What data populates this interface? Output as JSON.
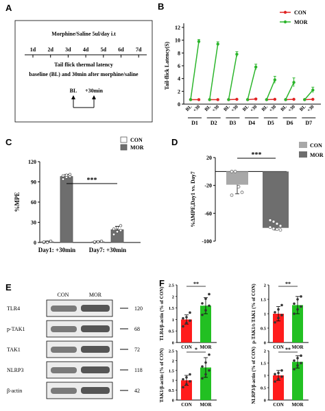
{
  "panel_labels": {
    "A": "A",
    "B": "B",
    "C": "C",
    "D": "D",
    "E": "E",
    "F": "F"
  },
  "colors": {
    "con_line": "#e02424",
    "mor_line": "#2bb52b",
    "con_bar": "#ffffff",
    "mor_bar": "#6e6e6e",
    "con_bar_d": "#a8a8a8",
    "mor_bar_d": "#6e6e6e",
    "f_con": "#ff1c1c",
    "f_mor": "#22c022"
  },
  "panel_a": {
    "title": "Morphine/Saline   5ul/day i.t",
    "days": [
      "1d",
      "2d",
      "3d",
      "4d",
      "5d",
      "6d",
      "7d"
    ],
    "line1": "Tail flick thermal latency",
    "line2": "baseline (BL) and 30min after morphine/saline",
    "bl": "BL",
    "t30": "+30min"
  },
  "chart_data": [
    {
      "panel": "B",
      "type": "line",
      "ylabel": "Tail-flick Latency(S)",
      "ylim": [
        0,
        12
      ],
      "yticks": [
        0,
        2,
        4,
        6,
        8,
        10,
        12
      ],
      "legend": {
        "placement": "top-right",
        "items": [
          "CON",
          "MOR"
        ]
      },
      "day_labels": [
        "D1",
        "D2",
        "D3",
        "D4",
        "D5",
        "D6",
        "D7"
      ],
      "tick_labels": [
        "BL",
        "+30"
      ],
      "series": [
        {
          "name": "CON",
          "segments": [
            [
              0.7,
              0.7
            ],
            [
              0.7,
              0.7
            ],
            [
              0.7,
              0.75
            ],
            [
              0.7,
              0.8
            ],
            [
              0.7,
              0.75
            ],
            [
              0.7,
              0.75
            ],
            [
              0.7,
              0.75
            ]
          ],
          "err": [
            0.05,
            0.05,
            0.05,
            0.1,
            0.05,
            0.05,
            0.05
          ]
        },
        {
          "name": "MOR",
          "segments": [
            [
              0.7,
              9.8
            ],
            [
              0.7,
              9.4
            ],
            [
              0.7,
              7.8
            ],
            [
              0.7,
              5.8
            ],
            [
              0.7,
              3.8
            ],
            [
              0.7,
              3.4
            ],
            [
              0.7,
              2.2
            ]
          ],
          "err": [
            0.3,
            0.35,
            0.4,
            0.45,
            0.55,
            0.7,
            0.45
          ]
        }
      ]
    },
    {
      "panel": "C",
      "type": "bar",
      "ylabel": "%MPE",
      "ylim": [
        0,
        120
      ],
      "yticks": [
        0,
        30,
        60,
        90,
        120
      ],
      "categories": [
        "Day1: +30min",
        "Day7: +30min"
      ],
      "legend": {
        "placement": "top-right",
        "items": [
          "CON",
          "MOR"
        ]
      },
      "series": [
        {
          "name": "CON",
          "values": [
            1,
            1
          ],
          "err": [
            1,
            1
          ],
          "points": [
            [
              0,
              1,
              2,
              1,
              0,
              2
            ],
            [
              0,
              1,
              2,
              1,
              1,
              2
            ]
          ]
        },
        {
          "name": "MOR",
          "values": [
            98,
            19
          ],
          "err": [
            3,
            5
          ],
          "points": [
            [
              94,
              97,
              98,
              99,
              100,
              101
            ],
            [
              12,
              16,
              18,
              20,
              22,
              25
            ]
          ]
        }
      ],
      "annotation": "***"
    },
    {
      "panel": "D",
      "type": "bar",
      "ylabel": "%ΔMPE,Day1 vs. Day7",
      "ylim": [
        -100,
        20
      ],
      "yticks": [
        20,
        -20,
        -60,
        -100
      ],
      "legend": {
        "placement": "top-right",
        "items": [
          "CON",
          "MOR"
        ]
      },
      "series": [
        {
          "name": "CON",
          "values": [
            -19
          ],
          "err": [
            13
          ],
          "points": [
            [
              0,
              0,
              -22,
              -30,
              -34
            ]
          ]
        },
        {
          "name": "MOR",
          "values": [
            -81
          ],
          "err": [
            3
          ],
          "points": [
            [
              -70,
              -72,
              -75,
              -78,
              -80,
              -82,
              -83,
              -84
            ]
          ]
        }
      ],
      "annotation": "***"
    },
    {
      "panel": "F1",
      "type": "bar",
      "ylabel": "TLR4/β-actin (% of CON)",
      "ylim": [
        0,
        2.5
      ],
      "yticks": [
        0,
        0.5,
        1.0,
        1.5,
        2.0,
        2.5
      ],
      "categories": [
        "CON",
        "MOR"
      ],
      "values": [
        1.0,
        1.6
      ],
      "err": [
        0.2,
        0.35
      ],
      "points": [
        [
          0.7,
          0.85,
          0.95,
          1.05,
          1.1,
          1.3
        ],
        [
          1.2,
          1.4,
          1.6,
          1.7,
          1.9,
          2.1
        ]
      ],
      "annotation": "**"
    },
    {
      "panel": "F2",
      "type": "bar",
      "ylabel": "p-TAK1/t-TAK1 (% of CON)",
      "ylim": [
        0,
        2.0
      ],
      "yticks": [
        0,
        0.5,
        1.0,
        1.5,
        2.0
      ],
      "categories": [
        "CON",
        "MOR"
      ],
      "values": [
        1.0,
        1.3
      ],
      "err": [
        0.25,
        0.3
      ],
      "points": [
        [
          0.7,
          0.85,
          0.95,
          1.05,
          1.15,
          1.3
        ],
        [
          1.0,
          1.15,
          1.25,
          1.35,
          1.5,
          1.6
        ]
      ],
      "annotation": "**"
    },
    {
      "panel": "F3",
      "type": "bar",
      "ylabel": "TAK1/β-actin (% of CON)",
      "ylim": [
        0,
        2.5
      ],
      "yticks": [
        0,
        0.5,
        1.0,
        1.5,
        2.0,
        2.5
      ],
      "categories": [
        "CON",
        "MOR"
      ],
      "values": [
        1.0,
        1.65
      ],
      "err": [
        0.25,
        0.5
      ],
      "points": [
        [
          0.65,
          0.8,
          0.95,
          1.05,
          1.15,
          1.3
        ],
        [
          1.1,
          1.3,
          1.5,
          1.7,
          1.9,
          2.3
        ]
      ],
      "annotation": "*"
    },
    {
      "panel": "F4",
      "type": "bar",
      "ylabel": "NLRP3/β-actin (% of CON)",
      "ylim": [
        0,
        2.0
      ],
      "yticks": [
        0,
        0.5,
        1.0,
        1.5,
        2.0
      ],
      "categories": [
        "CON",
        "MOR"
      ],
      "values": [
        1.0,
        1.55
      ],
      "err": [
        0.2,
        0.25
      ],
      "points": [
        [
          0.75,
          0.85,
          0.95,
          1.05,
          1.1,
          1.2
        ],
        [
          1.25,
          1.4,
          1.5,
          1.6,
          1.7,
          1.8
        ]
      ],
      "annotation": "**"
    }
  ],
  "panel_e": {
    "cols": [
      "CON",
      "MOR"
    ],
    "rows": [
      {
        "label": "TLR4",
        "kda": "120"
      },
      {
        "label": "p-TAK1",
        "kda": "68"
      },
      {
        "label": "TAK1",
        "kda": "72"
      },
      {
        "label": "NLRP3",
        "kda": "118"
      },
      {
        "label": "β-actin",
        "kda": "42"
      }
    ]
  }
}
